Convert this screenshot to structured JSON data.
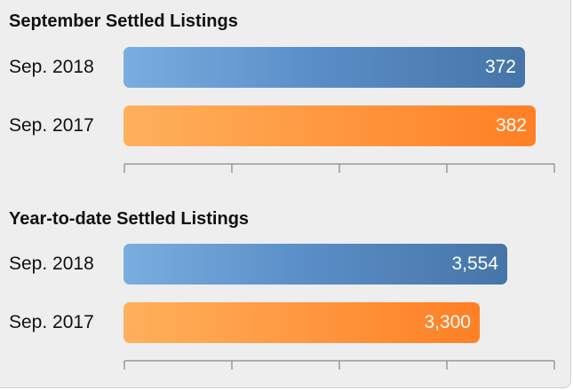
{
  "chart_data": [
    {
      "type": "bar",
      "orientation": "horizontal",
      "title": "September Settled Listings",
      "categories": [
        "Sep. 2018",
        "Sep. 2017"
      ],
      "values": [
        372,
        382
      ],
      "value_labels": [
        "372",
        "382"
      ],
      "colors": [
        "#5b8fc8",
        "#ff8c33"
      ],
      "xlim": [
        0,
        400
      ]
    },
    {
      "type": "bar",
      "orientation": "horizontal",
      "title": "Year-to-date Settled Listings",
      "categories": [
        "Sep. 2018",
        "Sep. 2017"
      ],
      "values": [
        3554,
        3300
      ],
      "value_labels": [
        "3,554",
        "3,300"
      ],
      "colors": [
        "#5b8fc8",
        "#ff8c33"
      ],
      "xlim": [
        0,
        4000
      ]
    }
  ]
}
